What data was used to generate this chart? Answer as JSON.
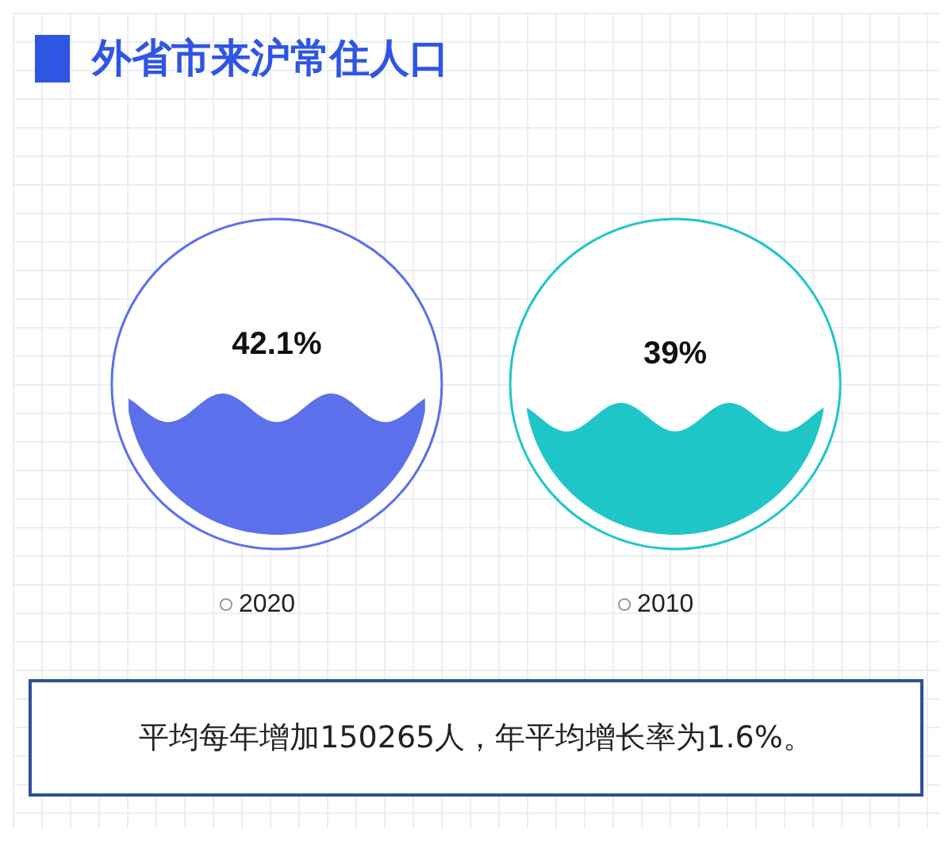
{
  "chart_data": {
    "type": "other",
    "title": "外省市来沪常住人口",
    "categories": [
      "2020",
      "2010"
    ],
    "values": [
      42.1,
      39
    ],
    "value_labels": [
      "42.1%",
      "39%"
    ],
    "colors": [
      "#5b70ea",
      "#1fc6c8"
    ],
    "annotations": [
      "平均每年增加150265人，年平均增长率为1.6%。"
    ]
  }
}
